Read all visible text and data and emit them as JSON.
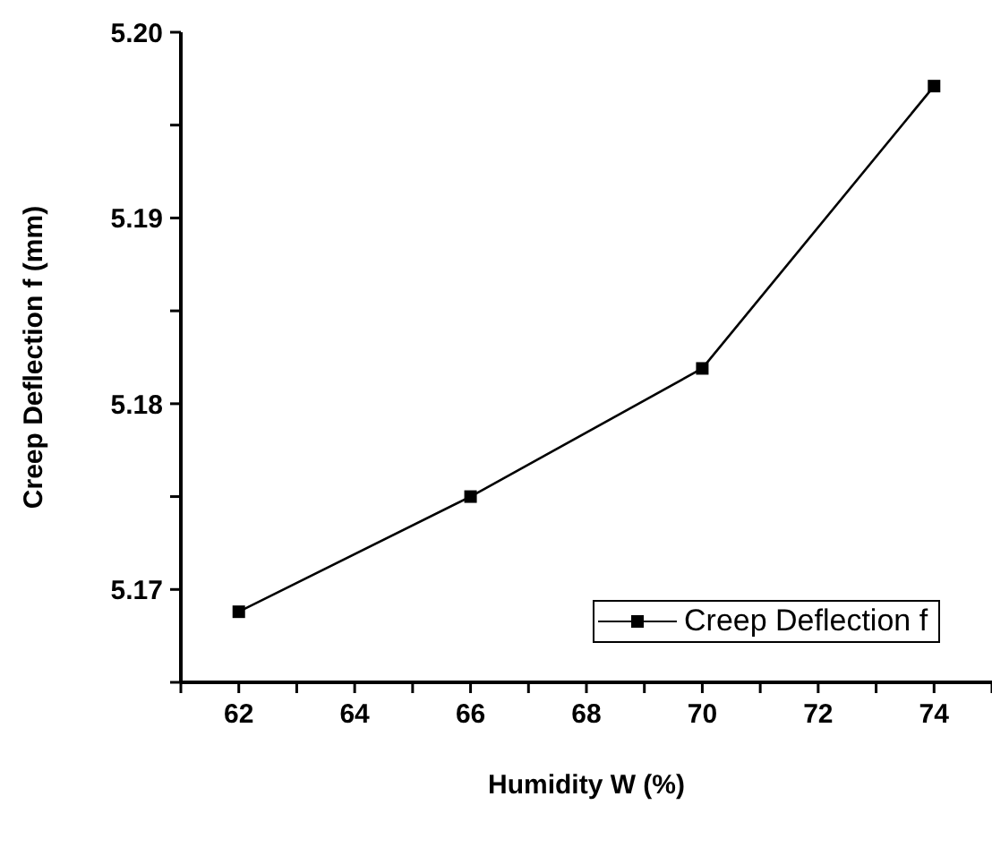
{
  "chart_data": {
    "type": "line",
    "xlabel": "Humidity W (%)",
    "ylabel": "Creep Deflection f (mm)",
    "x": [
      62,
      66,
      70,
      74
    ],
    "series": [
      {
        "name": "Creep Deflection f",
        "color": "#000000",
        "values": [
          5.1688,
          5.175,
          5.1819,
          5.1971
        ]
      }
    ],
    "xlim": [
      61,
      75
    ],
    "xticks": [
      {
        "value": 61,
        "label": null
      },
      62,
      {
        "value": 63,
        "label": null
      },
      64,
      {
        "value": 65,
        "label": null
      },
      66,
      {
        "value": 67,
        "label": null
      },
      68,
      {
        "value": 69,
        "label": null
      },
      70,
      {
        "value": 71,
        "label": null
      },
      72,
      {
        "value": 73,
        "label": null
      },
      74,
      {
        "value": 75,
        "label": null
      }
    ],
    "ylim": [
      5.165,
      5.2
    ],
    "yticks": [
      {
        "value": 5.165,
        "label": null
      },
      5.17,
      {
        "value": 5.175,
        "label": null
      },
      5.18,
      {
        "value": 5.185,
        "label": null
      },
      5.19,
      {
        "value": 5.195,
        "label": null
      },
      "5.20"
    ],
    "grid": false,
    "legend": "right",
    "marker": "square",
    "line_style": "solid"
  }
}
